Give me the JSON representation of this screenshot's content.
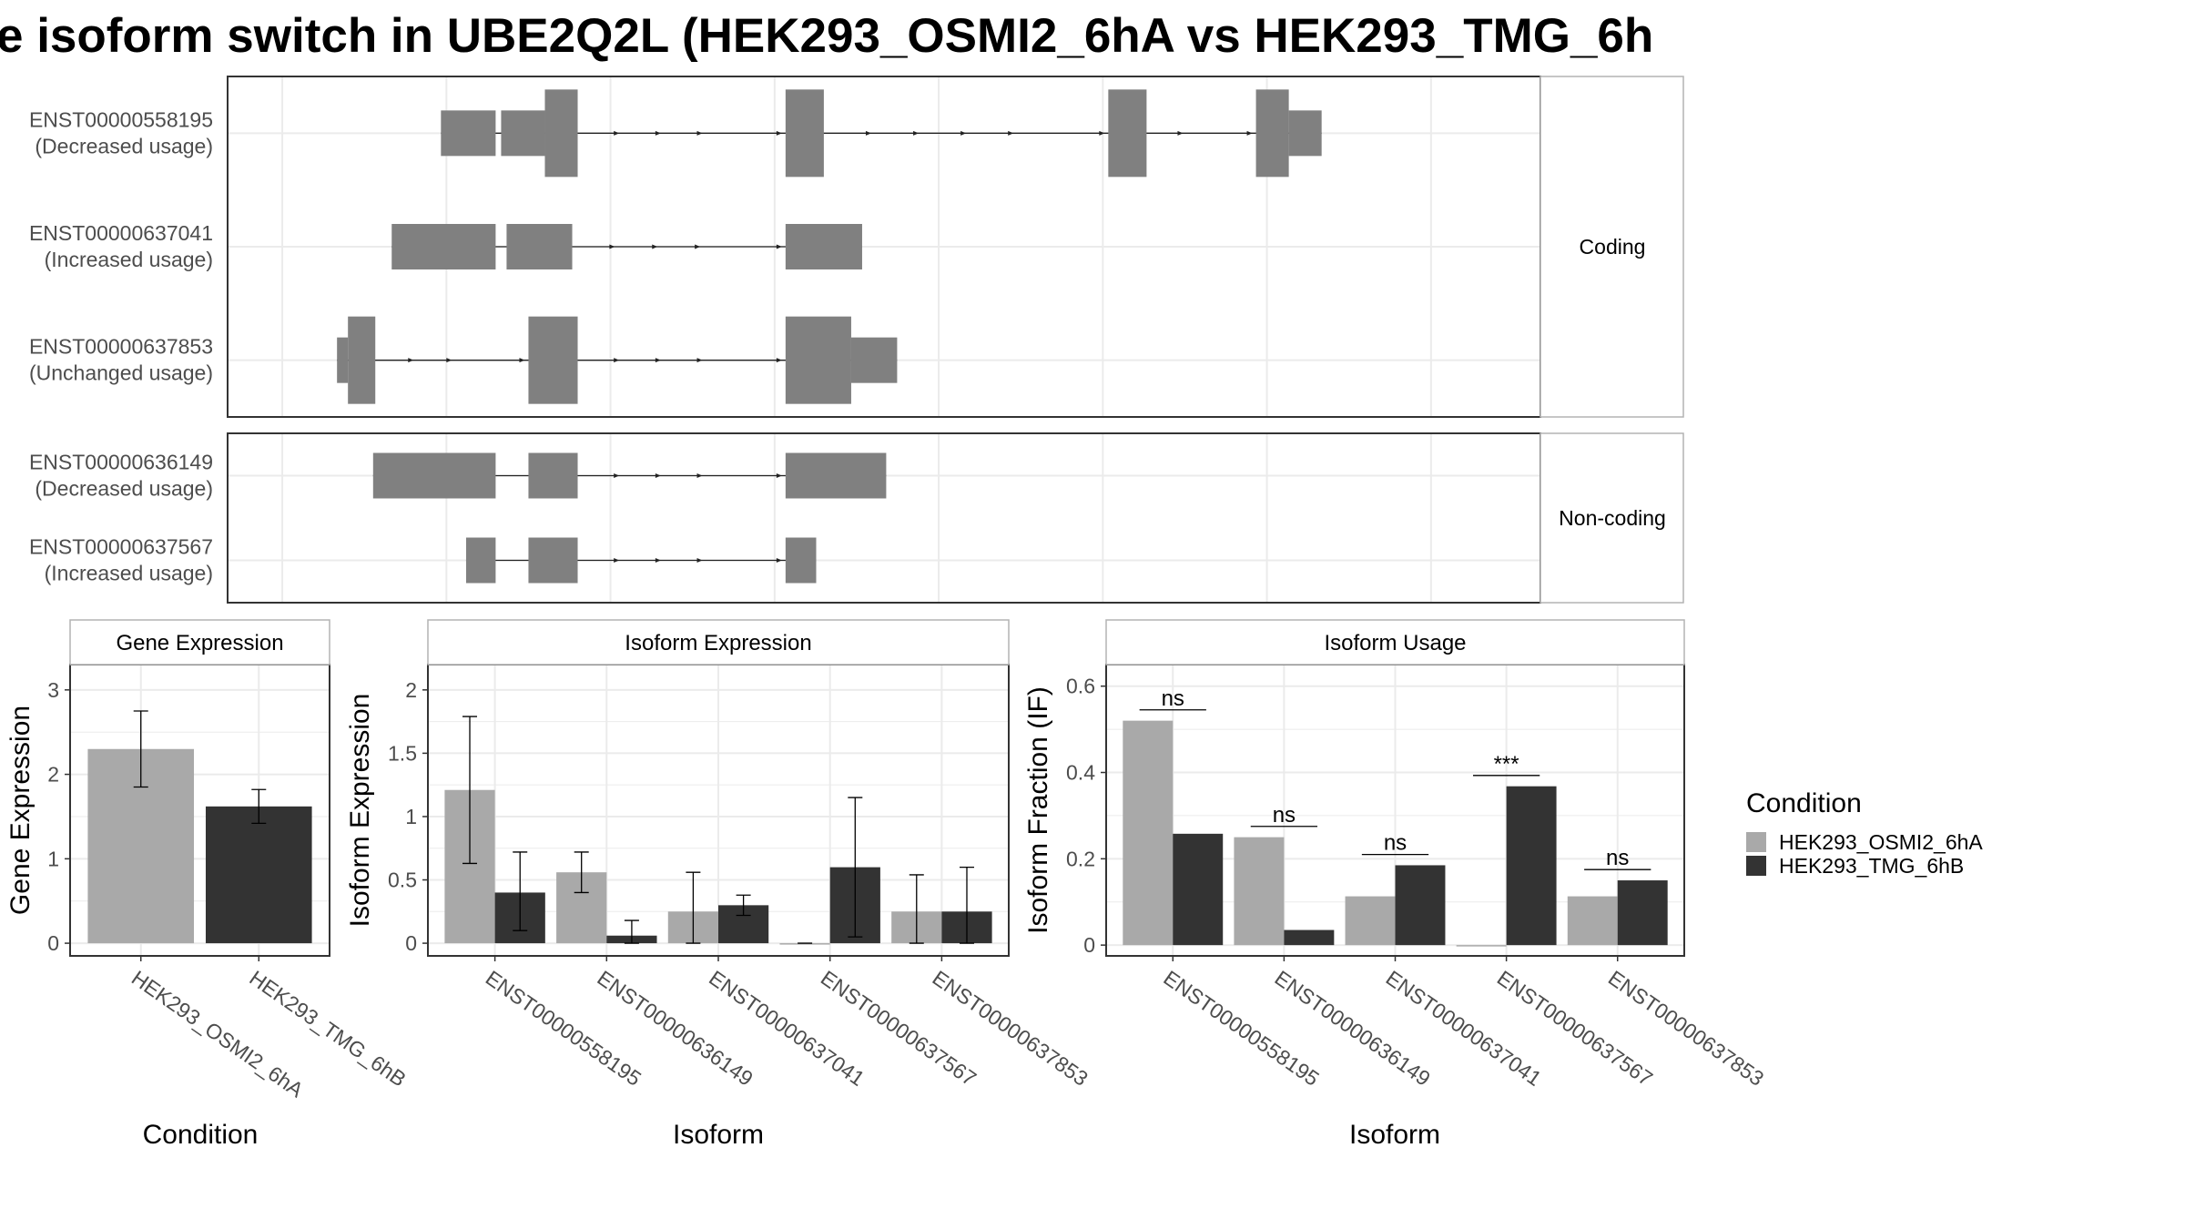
{
  "title": "e isoform switch in UBE2Q2L (HEK293_OSMI2_6hA vs HEK293_TMG_6h",
  "structure": {
    "groups": [
      {
        "label": "Coding",
        "isoforms": [
          {
            "id": "ENST00000558195",
            "usage": "(Decreased usage)",
            "exons": [
              [
                195,
                245,
                "t"
              ],
              [
                250,
                290,
                "t"
              ],
              [
                290,
                320,
                "c"
              ],
              [
                510,
                545,
                "c"
              ],
              [
                805,
                840,
                "c"
              ],
              [
                940,
                970,
                "c"
              ],
              [
                970,
                1000,
                "t"
              ]
            ]
          },
          {
            "id": "ENST00000637041",
            "usage": "(Increased usage)",
            "exons": [
              [
                150,
                245,
                "t"
              ],
              [
                255,
                315,
                "t"
              ],
              [
                510,
                580,
                "t"
              ]
            ]
          },
          {
            "id": "ENST00000637853",
            "usage": "(Unchanged usage)",
            "exons": [
              [
                100,
                110,
                "t"
              ],
              [
                110,
                135,
                "c"
              ],
              [
                275,
                320,
                "c"
              ],
              [
                510,
                570,
                "c"
              ],
              [
                570,
                612,
                "t"
              ]
            ]
          }
        ]
      },
      {
        "label": "Non-coding",
        "isoforms": [
          {
            "id": "ENST00000636149",
            "usage": "(Decreased usage)",
            "exons": [
              [
                133,
                245,
                "t"
              ],
              [
                275,
                320,
                "t"
              ],
              [
                510,
                602,
                "t"
              ]
            ]
          },
          {
            "id": "ENST00000637567",
            "usage": "(Increased usage)",
            "exons": [
              [
                218,
                245,
                "t"
              ],
              [
                275,
                320,
                "t"
              ],
              [
                510,
                538,
                "t"
              ]
            ]
          }
        ]
      }
    ]
  },
  "chart_data": [
    {
      "type": "bar",
      "title": "Gene Expression",
      "xlabel": "Condition",
      "ylabel": "Gene Expression",
      "categories": [
        "HEK293_OSMI2_6hA",
        "HEK293_TMG_6hB"
      ],
      "values": [
        2.3,
        1.62
      ],
      "errors": [
        [
          1.85,
          2.75
        ],
        [
          1.42,
          1.82
        ]
      ],
      "ylim": [
        -0.15,
        3.3
      ],
      "yticks": [
        0,
        1,
        2,
        3
      ]
    },
    {
      "type": "bar",
      "title": "Isoform Expression",
      "xlabel": "Isoform",
      "ylabel": "Isoform Expression",
      "categories": [
        "ENST00000558195",
        "ENST00000636149",
        "ENST00000637041",
        "ENST00000637567",
        "ENST00000637853"
      ],
      "series": [
        {
          "name": "HEK293_OSMI2_6hA",
          "values": [
            1.21,
            0.56,
            0.25,
            0.0,
            0.25
          ],
          "errors": [
            [
              0.63,
              1.79
            ],
            [
              0.4,
              0.72
            ],
            [
              0.0,
              0.56
            ],
            [
              0.0,
              0.0
            ],
            [
              0.0,
              0.54
            ]
          ]
        },
        {
          "name": "HEK293_TMG_6hB",
          "values": [
            0.4,
            0.06,
            0.3,
            0.6,
            0.25
          ],
          "errors": [
            [
              0.1,
              0.72
            ],
            [
              0.0,
              0.18
            ],
            [
              0.22,
              0.38
            ],
            [
              0.05,
              1.15
            ],
            [
              0.0,
              0.6
            ]
          ]
        }
      ],
      "ylim": [
        -0.1,
        2.2
      ],
      "yticks": [
        0.0,
        0.5,
        1.0,
        1.5,
        2.0
      ]
    },
    {
      "type": "bar",
      "title": "Isoform Usage",
      "xlabel": "Isoform",
      "ylabel": "Isoform Fraction (IF)",
      "categories": [
        "ENST00000558195",
        "ENST00000636149",
        "ENST00000637041",
        "ENST00000637567",
        "ENST00000637853"
      ],
      "series": [
        {
          "name": "HEK293_OSMI2_6hA",
          "values": [
            0.52,
            0.25,
            0.113,
            0.0,
            0.113
          ]
        },
        {
          "name": "HEK293_TMG_6hB",
          "values": [
            0.258,
            0.035,
            0.185,
            0.368,
            0.15
          ]
        }
      ],
      "significance": [
        "ns",
        "ns",
        "ns",
        "***",
        "ns"
      ],
      "ylim": [
        -0.025,
        0.65
      ],
      "yticks": [
        0.0,
        0.2,
        0.4,
        0.6
      ]
    }
  ],
  "legend": {
    "title": "Condition",
    "items": [
      {
        "label": "HEK293_OSMI2_6hA",
        "color": "#a9a9a9"
      },
      {
        "label": "HEK293_TMG_6hB",
        "color": "#333333"
      }
    ]
  },
  "colors": {
    "exon": "#808080",
    "osmi": "#a9a9a9",
    "tmg": "#333333",
    "grid": "#ebebeb",
    "border": "#333333",
    "strip": "#ffffff",
    "strip_border": "#b3b3b3"
  }
}
